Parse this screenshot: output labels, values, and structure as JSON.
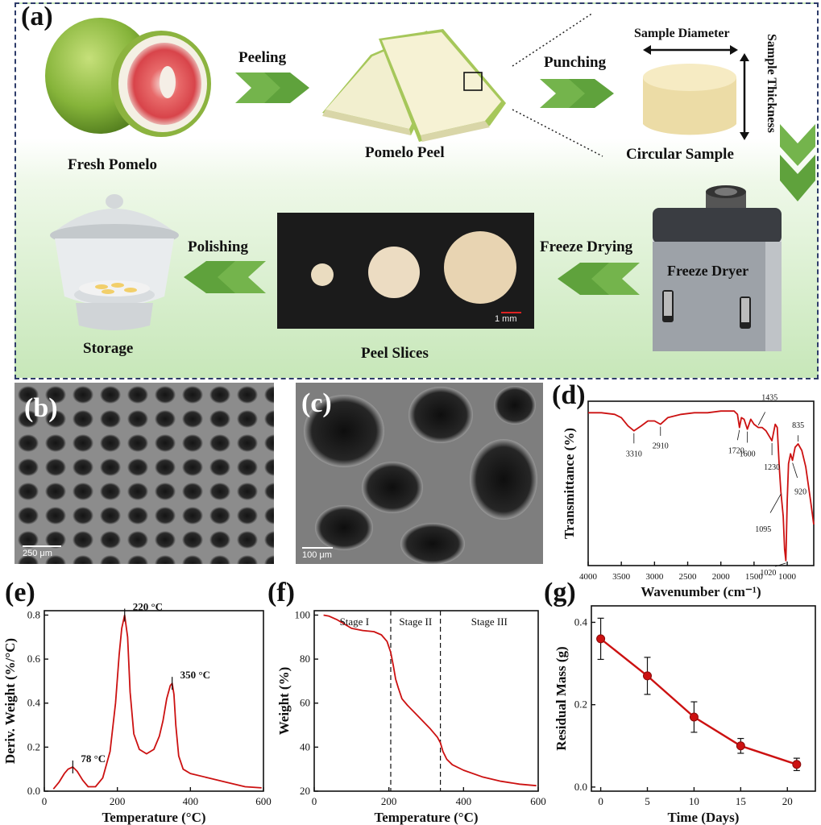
{
  "figure": {
    "panel_labels": {
      "a": "(a)",
      "b": "(b)",
      "c": "(c)",
      "d": "(d)",
      "e": "(e)",
      "f": "(f)",
      "g": "(g)"
    },
    "schematic": {
      "fresh_pomelo": "Fresh Pomelo",
      "peeling": "Peeling",
      "pomelo_peel": "Pomelo Peel",
      "punching": "Punching",
      "sample_diameter": "Sample Diameter",
      "sample_thickness": "Sample Thickness",
      "circular_sample": "Circular Sample",
      "freeze_dryer": "Freeze Dryer",
      "freeze_drying": "Freeze Drying",
      "peel_slices": "Peel Slices",
      "polishing": "Polishing",
      "storage": "Storage",
      "scale_1mm": "1 mm"
    },
    "sem": {
      "b_scale": "250 μm",
      "c_scale": "100 μm"
    },
    "colors": {
      "curve": "#cc1111",
      "arrow": "#6ab04c",
      "border": "#2e3c6a"
    }
  },
  "chart_data": [
    {
      "panel": "d",
      "type": "line",
      "xlabel": "Wavenumber (cm⁻¹)",
      "ylabel": "Transmittance (%)",
      "xlim": [
        4000,
        600
      ],
      "x_reversed": true,
      "xticks": [
        "4000",
        "3500",
        "3000",
        "2500",
        "2000",
        "1500",
        "1000"
      ],
      "ylim": [
        0,
        1
      ],
      "y_ticks_shown": false,
      "annotations": [
        "3310",
        "2910",
        "1720",
        "1600",
        "1435",
        "1230",
        "1095",
        "1020",
        "835",
        "920"
      ],
      "series": [
        {
          "x": [
            4000,
            3800,
            3600,
            3500,
            3400,
            3310,
            3200,
            3100,
            3000,
            2910,
            2800,
            2600,
            2400,
            2200,
            2000,
            1800,
            1750,
            1720,
            1690,
            1650,
            1600,
            1550,
            1500,
            1435,
            1380,
            1320,
            1230,
            1180,
            1150,
            1120,
            1095,
            1060,
            1040,
            1020,
            1000,
            980,
            950,
            920,
            880,
            835,
            780,
            720,
            650,
            600
          ],
          "y": [
            0.93,
            0.93,
            0.92,
            0.9,
            0.85,
            0.82,
            0.85,
            0.88,
            0.88,
            0.86,
            0.9,
            0.92,
            0.93,
            0.93,
            0.94,
            0.94,
            0.92,
            0.84,
            0.9,
            0.89,
            0.83,
            0.89,
            0.86,
            0.84,
            0.84,
            0.82,
            0.76,
            0.86,
            0.84,
            0.6,
            0.45,
            0.3,
            0.1,
            0.03,
            0.4,
            0.62,
            0.68,
            0.64,
            0.72,
            0.74,
            0.7,
            0.6,
            0.4,
            0.25
          ]
        }
      ]
    },
    {
      "panel": "e",
      "type": "line",
      "xlabel": "Temperature (°C)",
      "ylabel": "Deriv. Weight (%/°C)",
      "xlim": [
        0,
        600
      ],
      "ylim": [
        0,
        0.82
      ],
      "xticks": [
        "0",
        "200",
        "400",
        "600"
      ],
      "yticks": [
        "0.0",
        "0.2",
        "0.4",
        "0.6",
        "0.8"
      ],
      "annotations": [
        "78 °C",
        "220 °C",
        "350 °C"
      ],
      "series": [
        {
          "x": [
            25,
            40,
            55,
            65,
            78,
            90,
            105,
            120,
            140,
            160,
            180,
            195,
            205,
            212,
            220,
            228,
            235,
            245,
            260,
            280,
            300,
            315,
            325,
            335,
            345,
            350,
            355,
            360,
            368,
            380,
            400,
            450,
            500,
            550,
            595
          ],
          "y": [
            0.01,
            0.04,
            0.08,
            0.1,
            0.11,
            0.09,
            0.05,
            0.02,
            0.02,
            0.06,
            0.18,
            0.4,
            0.62,
            0.74,
            0.8,
            0.7,
            0.45,
            0.26,
            0.19,
            0.17,
            0.19,
            0.25,
            0.32,
            0.42,
            0.48,
            0.49,
            0.44,
            0.3,
            0.16,
            0.1,
            0.08,
            0.06,
            0.04,
            0.02,
            0.015
          ]
        }
      ]
    },
    {
      "panel": "f",
      "type": "line",
      "xlabel": "Temperature (°C)",
      "ylabel": "Weight (%)",
      "xlim": [
        0,
        600
      ],
      "ylim": [
        20,
        102
      ],
      "xticks": [
        "0",
        "200",
        "400",
        "600"
      ],
      "yticks": [
        "20",
        "40",
        "60",
        "80",
        "100"
      ],
      "stages": [
        "Stage I",
        "Stage II",
        "Stage III"
      ],
      "stage_boundaries": [
        205,
        338
      ],
      "series": [
        {
          "x": [
            25,
            40,
            60,
            80,
            100,
            130,
            160,
            180,
            195,
            205,
            212,
            218,
            225,
            235,
            250,
            270,
            290,
            310,
            330,
            338,
            345,
            355,
            370,
            400,
            450,
            500,
            550,
            595
          ],
          "y": [
            100,
            99.5,
            98,
            96,
            94,
            93,
            92.5,
            91,
            88,
            83,
            77,
            71,
            67,
            62,
            59,
            55.5,
            52,
            48.5,
            44.5,
            42,
            38,
            34.5,
            32,
            29.5,
            26.5,
            24.5,
            23.2,
            22.5
          ]
        }
      ]
    },
    {
      "panel": "g",
      "type": "line",
      "xlabel": "Time (Days)",
      "ylabel": "Residual Mass (g)",
      "xlim": [
        -1,
        23
      ],
      "ylim": [
        -0.01,
        0.44
      ],
      "xticks": [
        "0",
        "5",
        "10",
        "15",
        "20"
      ],
      "yticks": [
        "0.0",
        "0.2",
        "0.4"
      ],
      "series": [
        {
          "x": [
            0,
            5,
            10,
            15,
            21
          ],
          "y": [
            0.36,
            0.27,
            0.17,
            0.1,
            0.055
          ],
          "err": [
            0.05,
            0.045,
            0.037,
            0.018,
            0.015
          ]
        }
      ]
    }
  ]
}
